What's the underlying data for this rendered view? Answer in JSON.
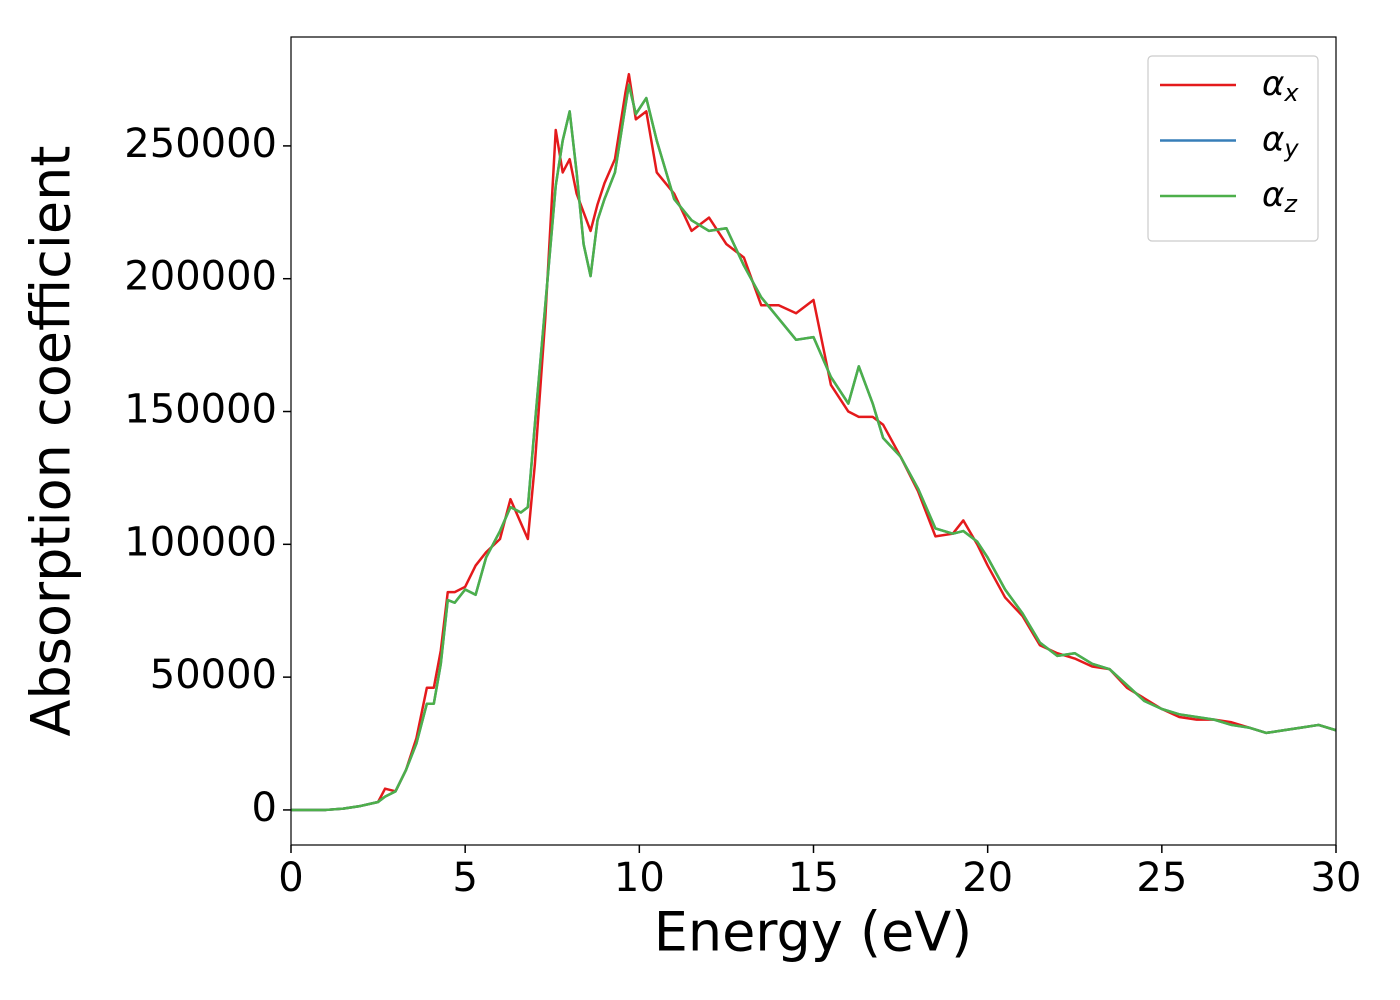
{
  "chart_data": {
    "type": "line",
    "xlabel": "Energy (eV)",
    "ylabel": "Absorption coefficient",
    "x": [
      0,
      1,
      1.5,
      2,
      2.5,
      2.7,
      3,
      3.3,
      3.6,
      3.9,
      4.1,
      4.3,
      4.5,
      4.7,
      5,
      5.3,
      5.6,
      6,
      6.3,
      6.6,
      6.8,
      7,
      7.3,
      7.6,
      7.8,
      8,
      8.2,
      8.4,
      8.6,
      8.8,
      9,
      9.3,
      9.6,
      9.7,
      9.9,
      10.2,
      10.5,
      11,
      11.5,
      12,
      12.5,
      13,
      13.5,
      14,
      14.5,
      15,
      15.5,
      16,
      16.3,
      16.7,
      17,
      17.5,
      18,
      18.5,
      19,
      19.3,
      19.7,
      20,
      20.5,
      21,
      21.5,
      22,
      22.5,
      23,
      23.5,
      24,
      24.5,
      25,
      25.5,
      26,
      26.5,
      27,
      27.5,
      28,
      28.5,
      29,
      29.5,
      30
    ],
    "series": [
      {
        "name": "αx",
        "color": "#e41a1c",
        "values": [
          0,
          0,
          500,
          1500,
          3000,
          8000,
          7000,
          15000,
          27000,
          46000,
          46000,
          60000,
          82000,
          82000,
          84000,
          92000,
          97000,
          102000,
          117000,
          108000,
          102000,
          130000,
          185000,
          256000,
          240000,
          245000,
          232000,
          225000,
          218000,
          228000,
          236000,
          245000,
          270000,
          277000,
          260000,
          263000,
          240000,
          232000,
          218000,
          223000,
          213000,
          208000,
          190000,
          190000,
          187000,
          192000,
          160000,
          150000,
          148000,
          148000,
          145000,
          133000,
          120000,
          103000,
          104000,
          109000,
          100000,
          92000,
          80000,
          73000,
          62000,
          59000,
          57000,
          54000,
          53000,
          46000,
          42000,
          38000,
          35000,
          34000,
          34000,
          33000,
          31000,
          29000,
          30000,
          31000,
          32000,
          30000
        ]
      },
      {
        "name": "αy",
        "color": "#377eb8",
        "values": [
          0,
          0,
          500,
          1500,
          3000,
          5000,
          7000,
          15000,
          25000,
          40000,
          40000,
          55000,
          79000,
          78000,
          83000,
          81000,
          95000,
          105000,
          114000,
          112000,
          114000,
          145000,
          190000,
          235000,
          252000,
          263000,
          240000,
          213000,
          201000,
          222000,
          230000,
          240000,
          265000,
          273000,
          262000,
          268000,
          252000,
          230000,
          222000,
          218000,
          219000,
          205000,
          193000,
          185000,
          177000,
          178000,
          163000,
          153000,
          167000,
          153000,
          140000,
          133000,
          121000,
          106000,
          104000,
          105000,
          101000,
          95000,
          83000,
          74000,
          63000,
          58000,
          59000,
          55000,
          53000,
          47000,
          41000,
          38000,
          36000,
          35000,
          34000,
          32000,
          31000,
          29000,
          30000,
          31000,
          32000,
          30000
        ]
      },
      {
        "name": "αz",
        "color": "#4daf4a",
        "values": [
          0,
          0,
          500,
          1500,
          3000,
          5000,
          7000,
          15000,
          25000,
          40000,
          40000,
          55000,
          79000,
          78000,
          83000,
          81000,
          95000,
          105000,
          114000,
          112000,
          114000,
          145000,
          190000,
          235000,
          252000,
          263000,
          240000,
          213000,
          201000,
          222000,
          230000,
          240000,
          265000,
          273000,
          262000,
          268000,
          252000,
          230000,
          222000,
          218000,
          219000,
          205000,
          193000,
          185000,
          177000,
          178000,
          163000,
          153000,
          167000,
          153000,
          140000,
          133000,
          121000,
          106000,
          104000,
          105000,
          101000,
          95000,
          83000,
          74000,
          63000,
          58000,
          59000,
          55000,
          53000,
          47000,
          41000,
          38000,
          36000,
          35000,
          34000,
          32000,
          31000,
          29000,
          30000,
          31000,
          32000,
          30000
        ]
      }
    ],
    "xlim": [
      0,
      30
    ],
    "xticks": [
      0,
      5,
      10,
      15,
      20,
      25,
      30
    ],
    "ylim": [
      -13200,
      291000
    ],
    "yticks": [
      0,
      50000,
      100000,
      150000,
      200000,
      250000
    ],
    "legend": "upper right",
    "grid": false
  }
}
